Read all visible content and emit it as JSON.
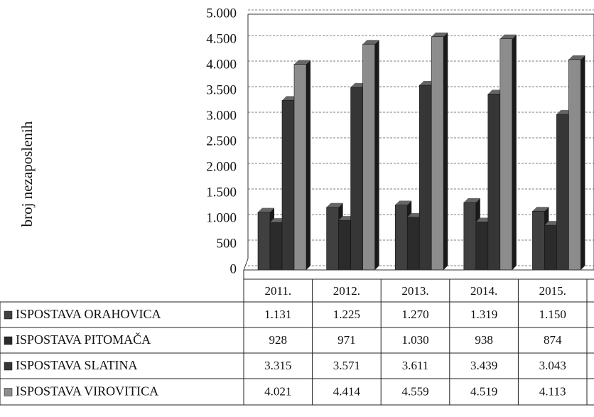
{
  "chart_data": {
    "type": "bar",
    "y_label": "broj nezaposlenih",
    "categories": [
      "2011.",
      "2012.",
      "2013.",
      "2014.",
      "2015."
    ],
    "series": [
      {
        "name": "ISPOSTAVA ORAHOVICA",
        "color": "#404040",
        "values": [
          1131,
          1225,
          1270,
          1319,
          1150
        ],
        "value_labels": [
          "1.131",
          "1.225",
          "1.270",
          "1.319",
          "1.150"
        ]
      },
      {
        "name": "ISPOSTAVA PITOMAČA",
        "color": "#2b2b2b",
        "values": [
          928,
          971,
          1030,
          938,
          874
        ],
        "value_labels": [
          "928",
          "971",
          "1.030",
          "938",
          "874"
        ]
      },
      {
        "name": "ISPOSTAVA SLATINA",
        "color": "#363636",
        "values": [
          3315,
          3571,
          3611,
          3439,
          3043
        ],
        "value_labels": [
          "3.315",
          "3.571",
          "3.611",
          "3.439",
          "3.043"
        ]
      },
      {
        "name": "ISPOSTAVA VIROVITICA",
        "color": "#8c8c8c",
        "values": [
          4021,
          4414,
          4559,
          4519,
          4113
        ],
        "value_labels": [
          "4.021",
          "4.414",
          "4.559",
          "4.519",
          "4.113"
        ]
      }
    ],
    "ylim": [
      0,
      5000
    ],
    "yticks": [
      {
        "value": 0,
        "label": "0"
      },
      {
        "value": 500,
        "label": "500"
      },
      {
        "value": 1000,
        "label": "1.000"
      },
      {
        "value": 1500,
        "label": "1.500"
      },
      {
        "value": 2000,
        "label": "2.000"
      },
      {
        "value": 2500,
        "label": "2.500"
      },
      {
        "value": 3000,
        "label": "3.000"
      },
      {
        "value": 3500,
        "label": "3.500"
      },
      {
        "value": 4000,
        "label": "4.000"
      },
      {
        "value": 4500,
        "label": "4.500"
      },
      {
        "value": 5000,
        "label": "5.000"
      }
    ],
    "grid": true
  }
}
